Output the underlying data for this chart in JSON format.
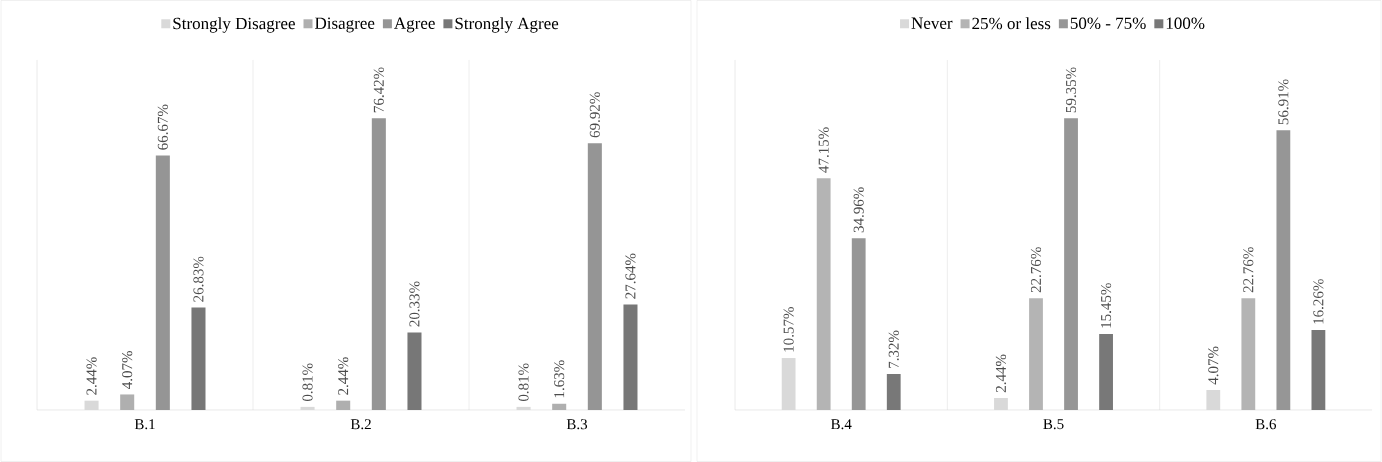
{
  "chart_data": [
    {
      "type": "bar",
      "categories": [
        "B.1",
        "B.2",
        "B.3"
      ],
      "legend": "top",
      "grid": "x",
      "series": [
        {
          "name": "Strongly Disagree",
          "color": "#d9d9d9",
          "values": [
            2.44,
            0.81,
            0.81
          ],
          "value_labels": [
            "2.44%",
            "0.81%",
            "0.81%"
          ]
        },
        {
          "name": "Disagree",
          "color": "#afafaf",
          "values": [
            4.07,
            2.44,
            1.63
          ],
          "value_labels": [
            "4.07%",
            "2.44%",
            "1.63%"
          ]
        },
        {
          "name": "Agree",
          "color": "#959595",
          "values": [
            66.67,
            76.42,
            69.92
          ],
          "value_labels": [
            "66.67%",
            "76.42%",
            "69.92%"
          ]
        },
        {
          "name": "Strongly Agree",
          "color": "#777777",
          "values": [
            26.83,
            20.33,
            27.64
          ],
          "value_labels": [
            "26.83%",
            "20.33%",
            "27.64%"
          ]
        }
      ]
    },
    {
      "type": "bar",
      "categories": [
        "B.4",
        "B.5",
        "B.6"
      ],
      "legend": "top",
      "grid": "x",
      "series": [
        {
          "name": "Never",
          "color": "#d9d9d9",
          "values": [
            10.57,
            2.44,
            4.07
          ],
          "value_labels": [
            "10.57%",
            "2.44%",
            "4.07%"
          ]
        },
        {
          "name": "25% or less",
          "color": "#b4b4b4",
          "values": [
            47.15,
            22.76,
            22.76
          ],
          "value_labels": [
            "47.15%",
            "22.76%",
            "22.76%"
          ]
        },
        {
          "name": "50% - 75%",
          "color": "#969696",
          "values": [
            34.96,
            59.35,
            56.91
          ],
          "value_labels": [
            "34.96%",
            "59.35%",
            "56.91%"
          ]
        },
        {
          "name": "100%",
          "color": "#787878",
          "values": [
            7.32,
            15.45,
            16.26
          ],
          "value_labels": [
            "7.32%",
            "15.45%",
            "16.26%"
          ]
        }
      ]
    }
  ]
}
